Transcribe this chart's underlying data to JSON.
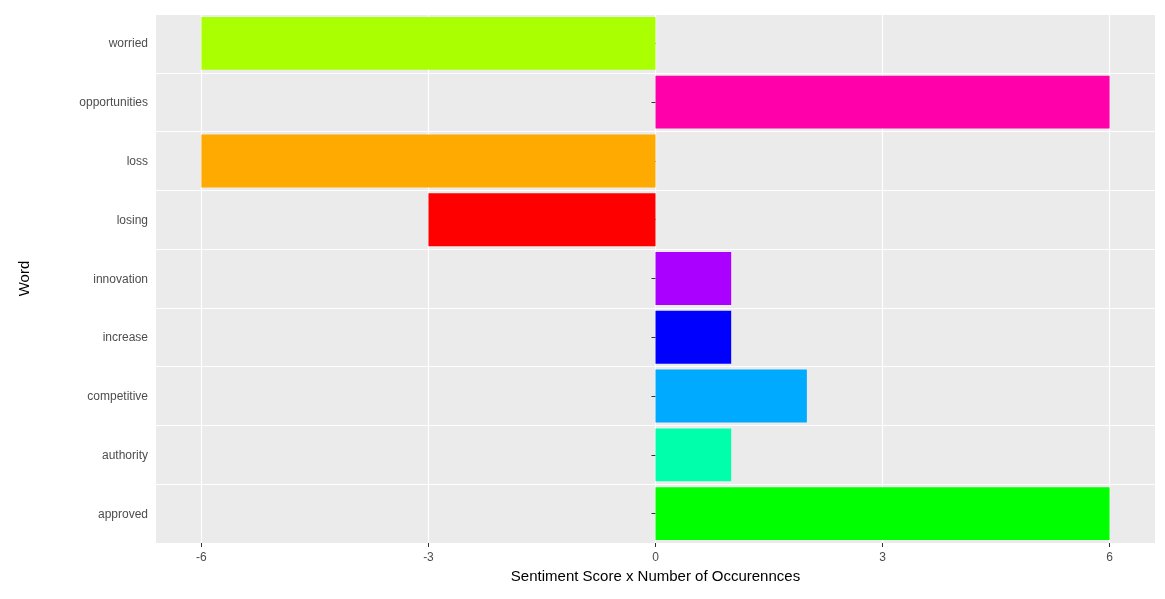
{
  "chart_data": {
    "type": "bar",
    "orientation": "horizontal",
    "xlabel": "Sentiment Score x Number of Occurennces",
    "ylabel": "Word",
    "categories": [
      "worried",
      "opportunities",
      "loss",
      "losing",
      "innovation",
      "increase",
      "competitive",
      "authority",
      "approved"
    ],
    "values": [
      -6,
      6,
      -6,
      -3,
      1,
      1,
      2,
      1,
      6
    ],
    "colors": [
      "#aaff00",
      "#ff00aa",
      "#ffaa00",
      "#ff0000",
      "#aa00ff",
      "#0000ff",
      "#00aaff",
      "#00ffaa",
      "#00ff00"
    ],
    "xlim": [
      -6.6,
      6.6
    ],
    "xticks": [
      -6,
      -3,
      0,
      3,
      6
    ],
    "grid": true
  }
}
